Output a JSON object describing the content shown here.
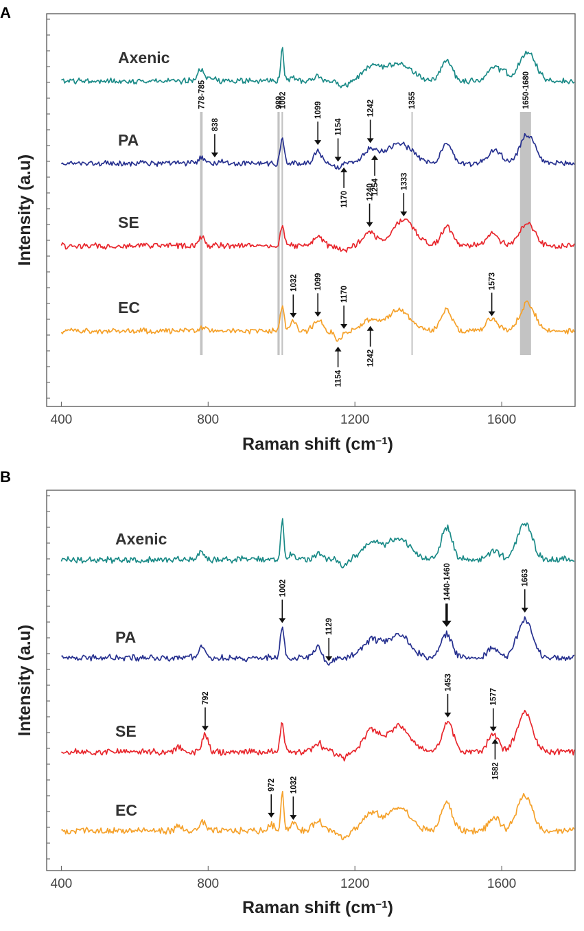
{
  "chart_data": [
    {
      "panel": "A",
      "type": "line",
      "title": "",
      "xlabel": "Raman shift (cm",
      "xlabel_sup": "−1",
      "xlabel_close": ")",
      "ylabel": "Intensity (a.u)",
      "xlim": [
        360,
        1800
      ],
      "x_ticks": [
        400,
        800,
        1200,
        1600
      ],
      "x_tick_labels": [
        "400",
        "800",
        "1200",
        "1600"
      ],
      "series": [
        {
          "name": "Axenic",
          "color": "#1a8a87",
          "offset": 3.0,
          "peaks": [
            [
              780,
              0.3,
              8
            ],
            [
              810,
              0.12,
              10
            ],
            [
              1002,
              0.9,
              4
            ],
            [
              1030,
              0.1,
              8
            ],
            [
              1099,
              0.12,
              10
            ],
            [
              1170,
              -0.15,
              12
            ],
            [
              1245,
              0.35,
              25
            ],
            [
              1320,
              0.45,
              35
            ],
            [
              1450,
              0.55,
              15
            ],
            [
              1580,
              0.35,
              18
            ],
            [
              1610,
              0.15,
              10
            ],
            [
              1670,
              0.75,
              22
            ]
          ]
        },
        {
          "name": "PA",
          "color": "#26308f",
          "offset": 2.0,
          "peaks": [
            [
              782,
              0.15,
              8
            ],
            [
              838,
              0.1,
              8
            ],
            [
              1002,
              0.7,
              5
            ],
            [
              1099,
              0.35,
              10
            ],
            [
              1154,
              -0.1,
              10
            ],
            [
              1242,
              0.35,
              20
            ],
            [
              1320,
              0.55,
              35
            ],
            [
              1450,
              0.5,
              15
            ],
            [
              1580,
              0.35,
              18
            ],
            [
              1670,
              0.75,
              20
            ]
          ]
        },
        {
          "name": "SE",
          "color": "#e8262c",
          "offset": 1.0,
          "peaks": [
            [
              782,
              0.25,
              8
            ],
            [
              1002,
              0.55,
              5
            ],
            [
              1099,
              0.25,
              12
            ],
            [
              1170,
              -0.15,
              12
            ],
            [
              1240,
              0.35,
              18
            ],
            [
              1333,
              0.7,
              30
            ],
            [
              1450,
              0.5,
              15
            ],
            [
              1573,
              0.3,
              18
            ],
            [
              1670,
              0.6,
              20
            ]
          ]
        },
        {
          "name": "EC",
          "color": "#f5a12a",
          "offset": 0.0,
          "peaks": [
            [
              782,
              0.1,
              8
            ],
            [
              1002,
              0.7,
              5
            ],
            [
              1032,
              0.25,
              8
            ],
            [
              1099,
              0.3,
              12
            ],
            [
              1154,
              -0.25,
              10
            ],
            [
              1242,
              0.3,
              20
            ],
            [
              1320,
              0.55,
              30
            ],
            [
              1450,
              0.55,
              15
            ],
            [
              1573,
              0.35,
              15
            ],
            [
              1670,
              0.75,
              20
            ]
          ]
        }
      ],
      "bands": [
        {
          "x1": 778,
          "x2": 785,
          "label": "778-785"
        },
        {
          "x1": 989,
          "x2": 995,
          "label": "989"
        },
        {
          "x1": 1000,
          "x2": 1004,
          "label": "1002"
        },
        {
          "x1": 1354,
          "x2": 1356,
          "label": "1355"
        },
        {
          "x1": 1650,
          "x2": 1680,
          "label": "1650-1680"
        }
      ],
      "annotations": [
        {
          "label": "838",
          "x": 818,
          "series": "PA",
          "dir": "down"
        },
        {
          "label": "1099",
          "x": 1099,
          "series": "PA",
          "dir": "down"
        },
        {
          "label": "1154",
          "x": 1154,
          "series": "PA",
          "dir": "down"
        },
        {
          "label": "1242",
          "x": 1242,
          "series": "PA",
          "dir": "down"
        },
        {
          "label": "1170",
          "x": 1170,
          "series": "PA",
          "dir": "up"
        },
        {
          "label": "1254",
          "x": 1254,
          "series": "PA",
          "dir": "up"
        },
        {
          "label": "1240",
          "x": 1240,
          "series": "SE",
          "dir": "down"
        },
        {
          "label": "1333",
          "x": 1333,
          "series": "SE",
          "dir": "down"
        },
        {
          "label": "1032",
          "x": 1032,
          "series": "EC",
          "dir": "down"
        },
        {
          "label": "1099",
          "x": 1099,
          "series": "EC",
          "dir": "down"
        },
        {
          "label": "1170",
          "x": 1170,
          "series": "EC",
          "dir": "down"
        },
        {
          "label": "1573",
          "x": 1573,
          "series": "EC",
          "dir": "down"
        },
        {
          "label": "1154",
          "x": 1154,
          "series": "EC",
          "dir": "up"
        },
        {
          "label": "1242",
          "x": 1242,
          "series": "EC",
          "dir": "up"
        }
      ]
    },
    {
      "panel": "B",
      "type": "line",
      "title": "",
      "xlabel": "Raman shift (cm",
      "xlabel_sup": "−1",
      "xlabel_close": ")",
      "ylabel": "Intensity (a.u)",
      "xlim": [
        360,
        1800
      ],
      "x_ticks": [
        400,
        800,
        1200,
        1600
      ],
      "x_tick_labels": [
        "400",
        "800",
        "1200",
        "1600"
      ],
      "series": [
        {
          "name": "Axenic",
          "color": "#1a8a87",
          "offset": 3.0,
          "peaks": [
            [
              780,
              0.2,
              8
            ],
            [
              1002,
              0.95,
              4
            ],
            [
              1030,
              0.15,
              8
            ],
            [
              1099,
              0.15,
              10
            ],
            [
              1170,
              -0.15,
              12
            ],
            [
              1245,
              0.4,
              25
            ],
            [
              1320,
              0.5,
              30
            ],
            [
              1450,
              0.75,
              15
            ],
            [
              1580,
              0.2,
              15
            ],
            [
              1663,
              0.85,
              20
            ]
          ]
        },
        {
          "name": "PA",
          "color": "#26308f",
          "offset": 2.0,
          "peaks": [
            [
              782,
              0.3,
              8
            ],
            [
              1002,
              0.75,
              5
            ],
            [
              1099,
              0.25,
              12
            ],
            [
              1129,
              -0.2,
              10
            ],
            [
              1245,
              0.4,
              25
            ],
            [
              1320,
              0.55,
              30
            ],
            [
              1450,
              0.55,
              15
            ],
            [
              1575,
              0.25,
              15
            ],
            [
              1663,
              0.9,
              20
            ]
          ]
        },
        {
          "name": "SE",
          "color": "#e8262c",
          "offset": 1.0,
          "peaks": [
            [
              720,
              0.1,
              8
            ],
            [
              792,
              0.4,
              8
            ],
            [
              1002,
              0.7,
              5
            ],
            [
              1099,
              0.2,
              12
            ],
            [
              1170,
              -0.15,
              12
            ],
            [
              1245,
              0.5,
              22
            ],
            [
              1320,
              0.6,
              30
            ],
            [
              1453,
              0.7,
              15
            ],
            [
              1577,
              0.4,
              15
            ],
            [
              1663,
              0.95,
              20
            ]
          ]
        },
        {
          "name": "EC",
          "color": "#f5a12a",
          "offset": 0.0,
          "peaks": [
            [
              720,
              0.1,
              8
            ],
            [
              785,
              0.2,
              8
            ],
            [
              972,
              0.15,
              8
            ],
            [
              1002,
              0.95,
              4
            ],
            [
              1032,
              0.2,
              8
            ],
            [
              1099,
              0.25,
              12
            ],
            [
              1170,
              -0.15,
              12
            ],
            [
              1245,
              0.4,
              22
            ],
            [
              1320,
              0.55,
              30
            ],
            [
              1450,
              0.65,
              15
            ],
            [
              1580,
              0.3,
              15
            ],
            [
              1663,
              0.85,
              20
            ]
          ]
        }
      ],
      "bands": [],
      "annotations": [
        {
          "label": "1002",
          "x": 1002,
          "series": "PA",
          "dir": "down"
        },
        {
          "label": "1129",
          "x": 1129,
          "series": "PA",
          "dir": "down"
        },
        {
          "label": "1440-1460",
          "x": 1450,
          "series": "PA",
          "dir": "down",
          "bold": true
        },
        {
          "label": "1663",
          "x": 1663,
          "series": "PA",
          "dir": "down"
        },
        {
          "label": "792",
          "x": 792,
          "series": "SE",
          "dir": "down"
        },
        {
          "label": "1453",
          "x": 1453,
          "series": "SE",
          "dir": "down"
        },
        {
          "label": "1577",
          "x": 1577,
          "series": "SE",
          "dir": "down"
        },
        {
          "label": "1582",
          "x": 1582,
          "series": "SE",
          "dir": "up"
        },
        {
          "label": "972",
          "x": 972,
          "series": "EC",
          "dir": "down"
        },
        {
          "label": "1032",
          "x": 1032,
          "series": "EC",
          "dir": "down"
        }
      ]
    }
  ]
}
